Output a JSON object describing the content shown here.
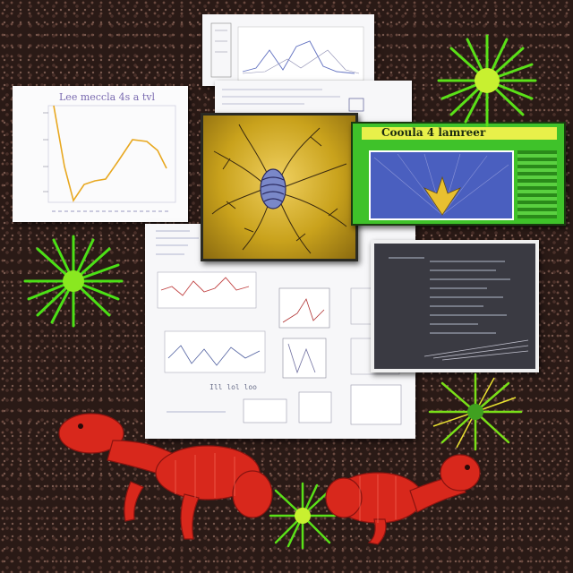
{
  "collage": {
    "top_chart_title": "Lee meccla 4s a tvl",
    "poster_title": "Cooula 4 lamreer",
    "bottom_caption": "Ill lol loo"
  },
  "colors": {
    "ground": "#2a1a16",
    "line_chart": "#e8a820",
    "yellow_panel": "#c9a21c",
    "blue_panel": "#4a5fbf",
    "poster_green": "#3fc22a",
    "dark_panel": "#3a3a42",
    "crawfish_red": "#d8281c",
    "plant_green": "#4ce016"
  },
  "icons": [
    "green-spiky-plant-icon",
    "red-crawfish-icon",
    "spiny-star-icon"
  ]
}
